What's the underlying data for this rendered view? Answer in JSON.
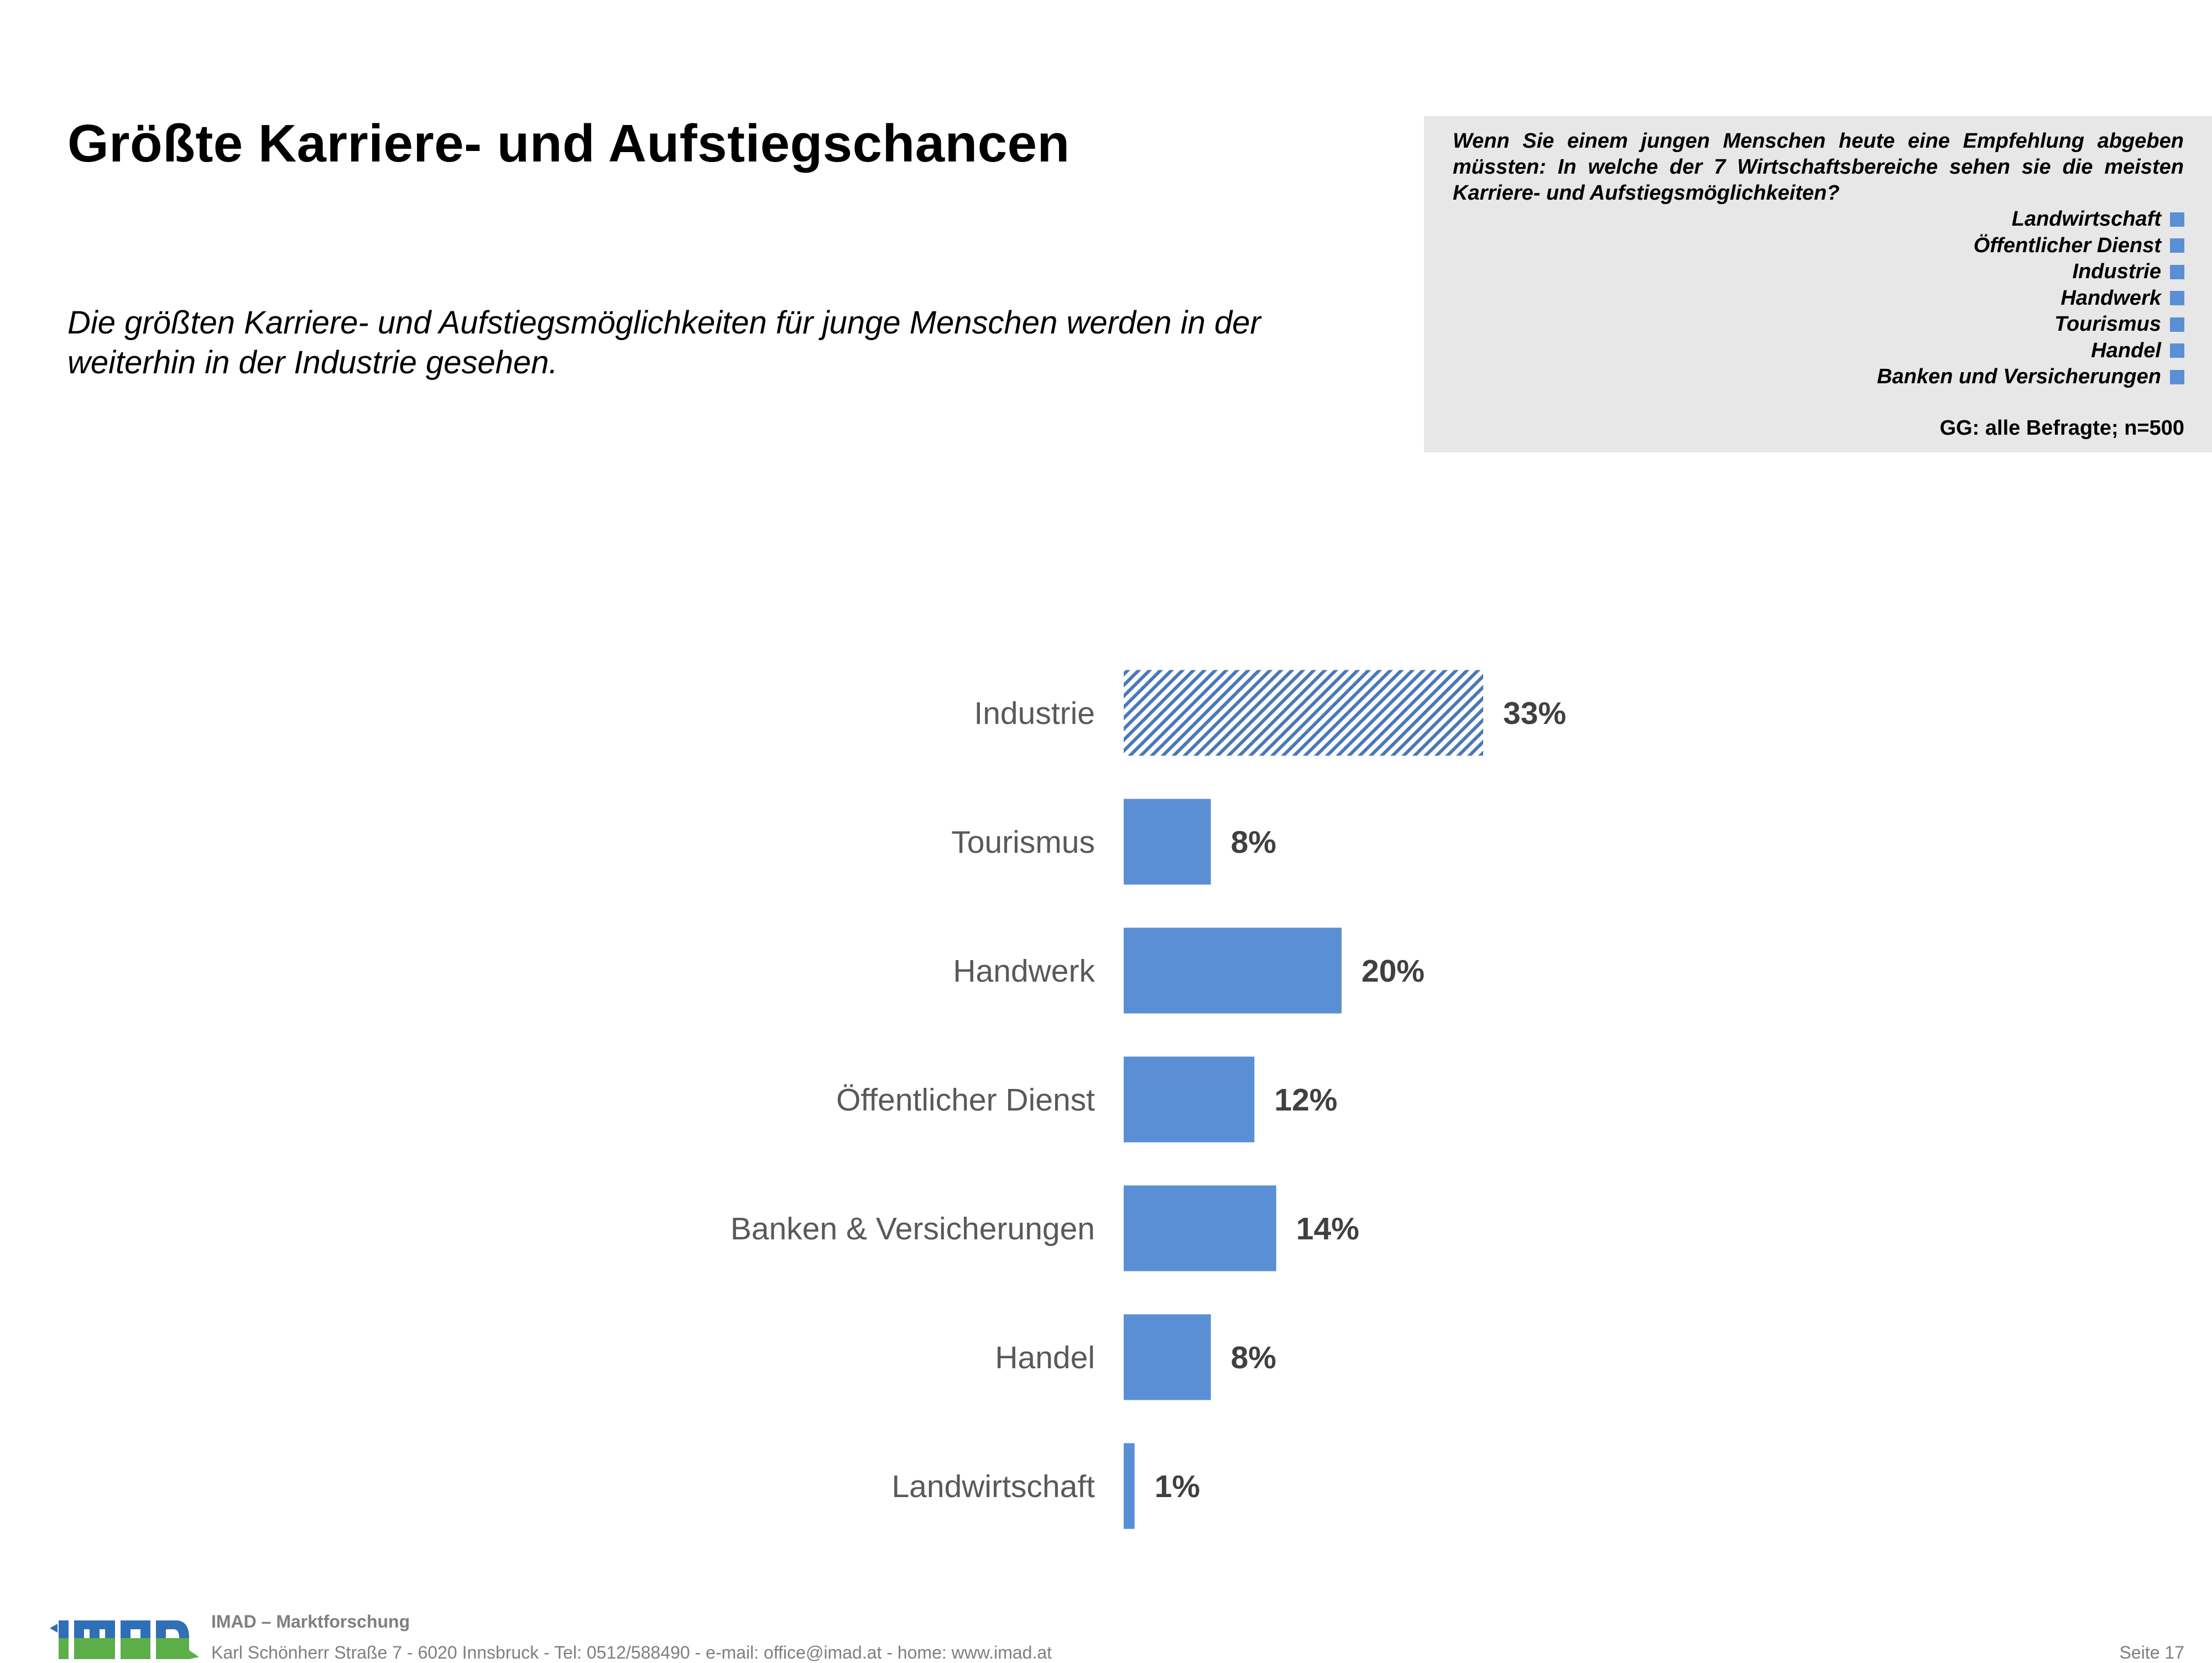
{
  "header": {
    "title": "Größte Karriere- und Aufstiegschancen",
    "subtitle": "Die größten Karriere- und Aufstiegsmöglichkeiten für junge Menschen werden in der weiterhin in der Industrie gesehen."
  },
  "info_box": {
    "question": "Wenn Sie einem jungen Menschen heute eine Empfehlung abgeben müssten: In welche der 7 Wirtschaftsbereiche sehen sie die meisten Karriere- und Aufstiegsmöglichkeiten?",
    "legend": [
      "Landwirtschaft",
      "Öffentlicher Dienst",
      "Industrie",
      "Handwerk",
      "Tourismus",
      "Handel",
      "Banken und Versicherungen"
    ],
    "base": "GG: alle Befragte; n=500"
  },
  "chart_data": {
    "type": "bar",
    "orientation": "horizontal",
    "categories": [
      "Industrie",
      "Tourismus",
      "Handwerk",
      "Öffentlicher Dienst",
      "Banken & Versicherungen",
      "Handel",
      "Landwirtschaft"
    ],
    "values": [
      33,
      8,
      20,
      12,
      14,
      8,
      1
    ],
    "labels": [
      "33%",
      "8%",
      "20%",
      "12%",
      "14%",
      "8%",
      "1%"
    ],
    "unit": "%",
    "highlight_category": "Industrie",
    "highlight_style": "hatched",
    "bar_color": "#5a8fd6",
    "axes_visible": false,
    "grid": false
  },
  "footer": {
    "logo_text": "IMAD",
    "company": "IMAD – Marktforschung",
    "address": "Karl Schönherr Straße  7 - 6020 Innsbruck  - Tel: 0512/588490 - e-mail: office@imad.at  - home: www.imad.at",
    "page": "Seite 17"
  },
  "colors": {
    "bar": "#5a8fd6",
    "hatch_line": "#4a78b8",
    "info_box_bg": "#e7e7e7",
    "footer_text": "#7f7f7f",
    "logo_blue": "#2f6fb5",
    "logo_green": "#5cae48"
  }
}
